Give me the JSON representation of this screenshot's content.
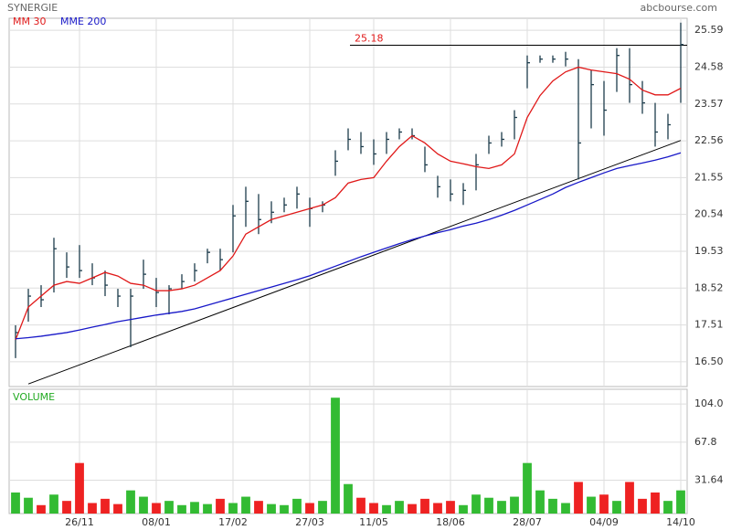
{
  "chart_data": [
    {
      "type": "ohlc",
      "title": "SYNERGIE",
      "credit": "abcbourse.com",
      "color": "#1c3c4c",
      "high": [
        17.5,
        18.5,
        18.6,
        19.9,
        19.5,
        19.7,
        19.2,
        19.0,
        18.5,
        18.5,
        19.3,
        18.8,
        18.6,
        18.9,
        19.2,
        19.6,
        19.6,
        20.8,
        21.3,
        21.1,
        20.9,
        21.0,
        21.3,
        21.0,
        20.9,
        22.3,
        22.9,
        22.8,
        22.6,
        22.8,
        22.9,
        22.9,
        22.4,
        21.6,
        21.5,
        21.4,
        22.2,
        22.7,
        22.8,
        23.4,
        24.9,
        24.9,
        24.9,
        25.0,
        24.8,
        24.5,
        24.2,
        25.1,
        25.1,
        24.2,
        23.6,
        23.3,
        25.8
      ],
      "low": [
        16.6,
        17.6,
        18.0,
        18.4,
        18.8,
        18.8,
        18.6,
        18.3,
        18.0,
        16.9,
        18.5,
        18.0,
        17.8,
        18.5,
        18.7,
        19.2,
        19.0,
        19.5,
        20.2,
        20.0,
        20.3,
        20.6,
        20.7,
        20.2,
        20.6,
        21.6,
        22.3,
        22.2,
        21.9,
        22.2,
        22.6,
        22.6,
        21.7,
        21.0,
        20.9,
        20.8,
        21.2,
        22.2,
        22.4,
        22.6,
        24.0,
        24.7,
        24.7,
        24.6,
        21.5,
        22.9,
        22.7,
        23.9,
        23.6,
        23.3,
        22.4,
        22.6,
        23.6
      ],
      "close": [
        17.3,
        18.3,
        18.2,
        19.6,
        19.1,
        19.0,
        18.8,
        18.6,
        18.3,
        18.3,
        18.9,
        18.4,
        18.5,
        18.7,
        19.0,
        19.5,
        19.3,
        20.5,
        20.9,
        20.4,
        20.6,
        20.8,
        21.1,
        20.7,
        20.8,
        22.0,
        22.6,
        22.4,
        22.2,
        22.6,
        22.8,
        22.7,
        21.9,
        21.3,
        21.1,
        21.2,
        21.9,
        22.5,
        22.6,
        23.2,
        24.7,
        24.8,
        24.8,
        24.8,
        22.5,
        24.1,
        23.4,
        24.9,
        24.1,
        23.6,
        22.8,
        23.0,
        25.2
      ],
      "series": [
        {
          "name": "MM 30",
          "color": "#e01818",
          "values": [
            17.1,
            18.0,
            18.3,
            18.6,
            18.7,
            18.65,
            18.8,
            18.95,
            18.85,
            18.65,
            18.6,
            18.45,
            18.45,
            18.5,
            18.6,
            18.8,
            19.0,
            19.4,
            20.0,
            20.2,
            20.4,
            20.5,
            20.6,
            20.7,
            20.8,
            21.0,
            21.4,
            21.5,
            21.55,
            22.0,
            22.4,
            22.7,
            22.5,
            22.2,
            22.0,
            21.93,
            21.85,
            21.8,
            21.9,
            22.2,
            23.2,
            23.8,
            24.2,
            24.45,
            24.58,
            24.5,
            24.45,
            24.4,
            24.25,
            23.95,
            23.82,
            23.82,
            24.0
          ]
        },
        {
          "name": "MME 200",
          "color": "#1818c8",
          "values": [
            17.13,
            17.16,
            17.2,
            17.25,
            17.3,
            17.37,
            17.45,
            17.52,
            17.6,
            17.66,
            17.72,
            17.78,
            17.83,
            17.88,
            17.95,
            18.05,
            18.15,
            18.25,
            18.35,
            18.45,
            18.55,
            18.65,
            18.75,
            18.86,
            18.99,
            19.12,
            19.25,
            19.38,
            19.5,
            19.62,
            19.74,
            19.85,
            19.95,
            20.04,
            20.12,
            20.22,
            20.3,
            20.4,
            20.52,
            20.65,
            20.8,
            20.95,
            21.1,
            21.28,
            21.42,
            21.55,
            21.68,
            21.8,
            21.88,
            21.95,
            22.03,
            22.12,
            22.23
          ]
        }
      ],
      "hline": {
        "value": 25.18,
        "color": "#e01818"
      },
      "trendline": {
        "x": [
          1,
          52
        ],
        "values": [
          15.89,
          22.57
        ]
      },
      "ylim": [
        15.82,
        25.92
      ],
      "yticks": [
        {
          "value": 16.5,
          "label": "16.50"
        },
        17.51,
        18.52,
        19.53,
        20.54,
        21.55,
        22.56,
        23.57,
        24.58,
        25.59
      ],
      "grid": true
    },
    {
      "type": "bar",
      "label": "VOLUME",
      "label_color": "#22aa22",
      "categories": [
        null,
        null,
        null,
        null,
        null,
        "26/11",
        null,
        null,
        null,
        null,
        null,
        "08/01",
        null,
        null,
        null,
        null,
        null,
        "17/02",
        null,
        null,
        null,
        null,
        null,
        "27/03",
        null,
        null,
        null,
        null,
        "11/05",
        null,
        null,
        null,
        null,
        null,
        "18/06",
        null,
        null,
        null,
        null,
        null,
        "28/07",
        null,
        null,
        null,
        null,
        null,
        "04/09",
        null,
        null,
        null,
        null,
        null,
        "14/10"
      ],
      "values": [
        20,
        15,
        8,
        18,
        12,
        48,
        10,
        14,
        9,
        22,
        16,
        10,
        12,
        8,
        11,
        9,
        14,
        10,
        16,
        12,
        9,
        8,
        14,
        10,
        12,
        110,
        28,
        15,
        10,
        8,
        12,
        9,
        14,
        10,
        12,
        8,
        18,
        15,
        12,
        16,
        48,
        22,
        14,
        10,
        30,
        16,
        18,
        12,
        30,
        14,
        20,
        12,
        22
      ],
      "colors": [
        "#33bb33",
        "#33bb33",
        "#ee2222",
        "#33bb33",
        "#ee2222",
        "#ee2222",
        "#ee2222",
        "#ee2222",
        "#ee2222",
        "#33bb33",
        "#33bb33",
        "#ee2222",
        "#33bb33",
        "#33bb33",
        "#33bb33",
        "#33bb33",
        "#ee2222",
        "#33bb33",
        "#33bb33",
        "#ee2222",
        "#33bb33",
        "#33bb33",
        "#33bb33",
        "#ee2222",
        "#33bb33",
        "#33bb33",
        "#33bb33",
        "#ee2222",
        "#ee2222",
        "#33bb33",
        "#33bb33",
        "#ee2222",
        "#ee2222",
        "#ee2222",
        "#ee2222",
        "#33bb33",
        "#33bb33",
        "#33bb33",
        "#33bb33",
        "#33bb33",
        "#33bb33",
        "#33bb33",
        "#33bb33",
        "#33bb33",
        "#ee2222",
        "#33bb33",
        "#ee2222",
        "#33bb33",
        "#ee2222",
        "#ee2222",
        "#ee2222",
        "#33bb33",
        "#33bb33"
      ],
      "ylim": [
        0,
        118
      ],
      "yticks": [
        31.64,
        67.8,
        {
          "value": 104,
          "label": "104.0"
        }
      ],
      "grid": true
    }
  ]
}
